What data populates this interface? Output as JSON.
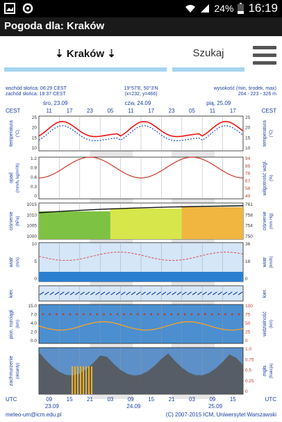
{
  "status_bar": {
    "battery": "24%",
    "time": "16:19"
  },
  "app": {
    "title": "Pogoda dla: Kraków"
  },
  "toolbar": {
    "city_label": "⇣ Kraków ⇣",
    "search_label": "Szukaj"
  },
  "meteogram": {
    "sunrise": "wschód słońca: 06:29 CEST",
    "sunset": "zachód słońca: 18:37 CEST",
    "coords": "19°57'E, 50°3'N",
    "grid": "(x=232, y=466)",
    "height_title": "wysokość (min, środek, max)",
    "height_values": "204 - 223 - 326 m",
    "tz": "CEST",
    "day_labels": [
      "śro, 23.09",
      "czw, 24.09",
      "pią, 25.09"
    ],
    "top_hours": [
      "11",
      "17",
      "23",
      "05",
      "11",
      "17",
      "23",
      "05",
      "11",
      "17"
    ],
    "bottom_hours": [
      "09",
      "15",
      "21",
      "03",
      "09",
      "15",
      "21",
      "03",
      "09",
      "15"
    ],
    "bottom_dates": [
      "23.09",
      "24.09",
      "25.09"
    ],
    "utc": "UTC",
    "footer_left": "meteo-um@icm.edu.pl",
    "footer_right": "(C) 2007-2015 ICM, Uniwersytet Warszawski",
    "panels": {
      "temp": {
        "label_l": "temperatura",
        "unit_l": "(°C)",
        "label_r": "temperatura",
        "unit_r": "(°C)",
        "ticks": [
          "25",
          "20",
          "15",
          "10"
        ]
      },
      "rain": {
        "label_l": "opad",
        "unit_l": "(mm/h, kg/m²/h)",
        "label_r": "wilgotność wzgl.",
        "unit_r": "(%)",
        "ticks_l": [
          "1.2",
          "0.9",
          "0.6",
          "0.3",
          "0"
        ],
        "ticks_r": [
          "94",
          "85",
          "76",
          "67",
          "58",
          "49"
        ]
      },
      "press": {
        "label_l": "ciśnienie",
        "unit_l": "(hPa)",
        "label_r": "ciśnienie",
        "unit_r": "(mm Hg)",
        "ticks_l": [
          "1015",
          "1010",
          "1005",
          "1000"
        ],
        "ticks_r": [
          "761",
          "758",
          "754",
          "750"
        ]
      },
      "wind": {
        "label_l": "wiatr",
        "unit_l": "(m/s)",
        "label_r": "wiatr",
        "unit_r": "(km/h)",
        "ticks_l": [
          "10",
          "5",
          "0"
        ],
        "ticks_r": [
          "36",
          "18",
          "0"
        ]
      },
      "dir": {
        "label_l": "kier.",
        "unit_l": "",
        "label_r": "kier.",
        "unit_r": ""
      },
      "vis": {
        "label_l": "pion. rozciągł.",
        "unit_l": "(km)",
        "label_r": "widzialność",
        "unit_r": "(km)",
        "ticks_l": [
          "15.0",
          "7.0",
          "4.0",
          "2.0",
          "0.0"
        ],
        "ticks_r": [
          "100",
          "75",
          "50",
          "25",
          "0"
        ]
      },
      "cloud": {
        "label_l": "zachmurzenie",
        "unit_l": "(oktanty)",
        "label_r": "mgła",
        "unit_r": "(frakcja)",
        "ticks_r": [
          "1.0",
          "0.75",
          "0.5",
          "0.25",
          "0"
        ]
      }
    }
  },
  "colors": {
    "title_bar": "#1a1a1a",
    "accent": "#a5d4f0",
    "temp_line": "#ee1111",
    "panel_bg": "#cfe3f5"
  }
}
